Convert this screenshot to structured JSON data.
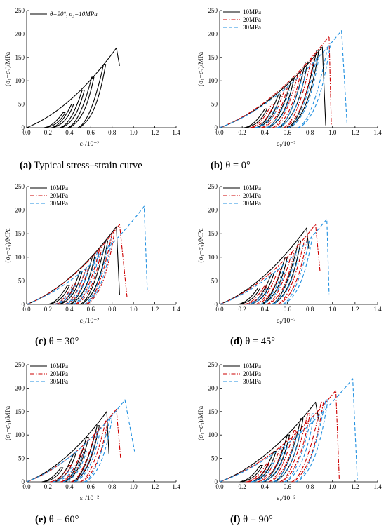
{
  "figure": {
    "panels": [
      {
        "id": "a",
        "caption_letter": "(a)",
        "caption_text": " Typical stress–strain curve",
        "legend_text": "θ=90°, σ₃=10MPa"
      },
      {
        "id": "b",
        "caption_letter": "(b)",
        "caption_text": " θ = 0°"
      },
      {
        "id": "c",
        "caption_letter": "(c)",
        "caption_text": " θ = 30°"
      },
      {
        "id": "d",
        "caption_letter": "(d)",
        "caption_text": " θ = 45°"
      },
      {
        "id": "e",
        "caption_letter": "(e)",
        "caption_text": " θ = 60°"
      },
      {
        "id": "f",
        "caption_letter": "(f)",
        "caption_text": " θ = 90°"
      }
    ]
  },
  "colors": {
    "10MPa": "#000000",
    "20MPa": "#cc0000",
    "30MPa": "#1f8fe0"
  },
  "chart_data": [
    {
      "panel": "a",
      "type": "line",
      "xlabel": "ε₁/10⁻²",
      "ylabel": "(σ₁−σ₃)/MPa",
      "xlim": [
        0,
        1.4
      ],
      "ylim": [
        0,
        250
      ],
      "xticks": [
        "0.0",
        "0.2",
        "0.4",
        "0.6",
        "0.8",
        "1.0",
        "1.2",
        "1.4"
      ],
      "yticks": [
        "0",
        "50",
        "100",
        "150",
        "200",
        "250"
      ],
      "legend_position": "top-left",
      "grid": false,
      "series": [
        {
          "name": "θ=90°, σ₃=10MPa",
          "style": "solid",
          "color": "#000000",
          "peak_stress": 170,
          "peak_strain": 0.84,
          "end_strain": 0.87,
          "end_stress": 132,
          "loops": [
            [
              0.34,
              32
            ],
            [
              0.42,
              50
            ],
            [
              0.52,
              80
            ],
            [
              0.61,
              108
            ],
            [
              0.72,
              135
            ]
          ]
        }
      ]
    },
    {
      "panel": "b",
      "type": "line",
      "xlabel": "ε₁/10⁻²",
      "ylabel": "(σ₁−σ₃)/MPa",
      "xlim": [
        0,
        1.4
      ],
      "ylim": [
        0,
        250
      ],
      "xticks": [
        "0.0",
        "0.2",
        "0.4",
        "0.6",
        "0.8",
        "1.0",
        "1.2",
        "1.4"
      ],
      "yticks": [
        "0",
        "50",
        "100",
        "150",
        "200",
        "250"
      ],
      "legend_position": "top-left",
      "grid": false,
      "series": [
        {
          "name": "10MPa",
          "style": "solid",
          "color": "#000000",
          "peak_stress": 172,
          "peak_strain": 0.91,
          "end_strain": 0.94,
          "end_stress": 5,
          "loops": [
            [
              0.4,
              40
            ],
            [
              0.52,
              70
            ],
            [
              0.64,
              105
            ],
            [
              0.76,
              140
            ],
            [
              0.86,
              165
            ]
          ]
        },
        {
          "name": "20MPa",
          "style": "dashdot",
          "color": "#cc0000",
          "peak_stress": 195,
          "peak_strain": 0.97,
          "end_strain": 0.99,
          "end_stress": 5,
          "loops": [
            [
              0.46,
              50
            ],
            [
              0.58,
              85
            ],
            [
              0.7,
              120
            ],
            [
              0.82,
              155
            ]
          ]
        },
        {
          "name": "30MPa",
          "style": "dashed",
          "color": "#1f8fe0",
          "peak_stress": 207,
          "peak_strain": 1.08,
          "end_strain": 1.13,
          "end_stress": 5,
          "loops": [
            [
              0.5,
              45
            ],
            [
              0.62,
              80
            ],
            [
              0.74,
              115
            ],
            [
              0.86,
              150
            ],
            [
              0.96,
              175
            ]
          ]
        }
      ]
    },
    {
      "panel": "c",
      "type": "line",
      "xlabel": "ε₁/10⁻²",
      "ylabel": "(σ₁−σ₃)/MPa",
      "xlim": [
        0,
        1.4
      ],
      "ylim": [
        0,
        250
      ],
      "xticks": [
        "0.0",
        "0.2",
        "0.4",
        "0.6",
        "0.8",
        "1.0",
        "1.2",
        "1.4"
      ],
      "yticks": [
        "0",
        "50",
        "100",
        "150",
        "200",
        "250"
      ],
      "legend_position": "top-left",
      "grid": false,
      "series": [
        {
          "name": "10MPa",
          "style": "solid",
          "color": "#000000",
          "peak_stress": 165,
          "peak_strain": 0.84,
          "end_strain": 0.87,
          "end_stress": 20,
          "loops": [
            [
              0.38,
              40
            ],
            [
              0.5,
              70
            ],
            [
              0.62,
              105
            ],
            [
              0.74,
              135
            ]
          ]
        },
        {
          "name": "20MPa",
          "style": "dashdot",
          "color": "#cc0000",
          "peak_stress": 170,
          "peak_strain": 0.87,
          "end_strain": 0.94,
          "end_stress": 15,
          "loops": [
            [
              0.44,
              45
            ],
            [
              0.56,
              80
            ],
            [
              0.68,
              115
            ],
            [
              0.8,
              150
            ]
          ]
        },
        {
          "name": "30MPa",
          "style": "dashed",
          "color": "#1f8fe0",
          "peak_stress": 208,
          "peak_strain": 1.1,
          "end_strain": 1.13,
          "end_stress": 30,
          "loops": [
            [
              0.44,
              40
            ],
            [
              0.56,
              75
            ],
            [
              0.66,
              110
            ],
            [
              0.78,
              140
            ]
          ]
        }
      ]
    },
    {
      "panel": "d",
      "type": "line",
      "xlabel": "ε₁/10⁻²",
      "ylabel": "(σ₁−σ₃)/MPa",
      "xlim": [
        0,
        1.4
      ],
      "ylim": [
        0,
        250
      ],
      "xticks": [
        "0.0",
        "0.2",
        "0.4",
        "0.6",
        "0.8",
        "1.0",
        "1.2",
        "1.4"
      ],
      "yticks": [
        "0",
        "50",
        "100",
        "150",
        "200",
        "250"
      ],
      "legend_position": "top-left",
      "grid": false,
      "series": [
        {
          "name": "10MPa",
          "style": "solid",
          "color": "#000000",
          "peak_stress": 162,
          "peak_strain": 0.77,
          "end_strain": 0.79,
          "end_stress": 118,
          "loops": [
            [
              0.34,
              35
            ],
            [
              0.46,
              65
            ],
            [
              0.58,
              100
            ],
            [
              0.7,
              135
            ]
          ]
        },
        {
          "name": "20MPa",
          "style": "dashdot",
          "color": "#cc0000",
          "peak_stress": 170,
          "peak_strain": 0.85,
          "end_strain": 0.89,
          "end_stress": 70,
          "loops": [
            [
              0.4,
              40
            ],
            [
              0.52,
              75
            ],
            [
              0.64,
              110
            ],
            [
              0.76,
              145
            ]
          ]
        },
        {
          "name": "30MPa",
          "style": "dashed",
          "color": "#1f8fe0",
          "peak_stress": 181,
          "peak_strain": 0.95,
          "end_strain": 0.97,
          "end_stress": 22,
          "loops": [
            [
              0.42,
              35
            ],
            [
              0.56,
              70
            ],
            [
              0.68,
              105
            ],
            [
              0.8,
              140
            ]
          ]
        }
      ]
    },
    {
      "panel": "e",
      "type": "line",
      "xlabel": "ε₁/10⁻²",
      "ylabel": "(σ₁−σ₃)/MPa",
      "xlim": [
        0,
        1.4
      ],
      "ylim": [
        0,
        250
      ],
      "xticks": [
        "0.0",
        "0.2",
        "0.4",
        "0.6",
        "0.8",
        "1.0",
        "1.2",
        "1.4"
      ],
      "yticks": [
        "0",
        "50",
        "100",
        "150",
        "200",
        "250"
      ],
      "legend_position": "top-left",
      "grid": false,
      "series": [
        {
          "name": "10MPa",
          "style": "solid",
          "color": "#000000",
          "peak_stress": 150,
          "peak_strain": 0.75,
          "end_strain": 0.77,
          "end_stress": 60,
          "loops": [
            [
              0.32,
              30
            ],
            [
              0.44,
              60
            ],
            [
              0.56,
              95
            ],
            [
              0.66,
              120
            ]
          ]
        },
        {
          "name": "20MPa",
          "style": "dashdot",
          "color": "#cc0000",
          "peak_stress": 155,
          "peak_strain": 0.84,
          "end_strain": 0.88,
          "end_stress": 50,
          "loops": [
            [
              0.4,
              35
            ],
            [
              0.52,
              70
            ],
            [
              0.64,
              105
            ],
            [
              0.74,
              130
            ]
          ]
        },
        {
          "name": "30MPa",
          "style": "dashed",
          "color": "#1f8fe0",
          "peak_stress": 175,
          "peak_strain": 0.92,
          "end_strain": 1.01,
          "end_stress": 65,
          "loops": [
            [
              0.42,
              30
            ],
            [
              0.54,
              65
            ],
            [
              0.66,
              100
            ],
            [
              0.78,
              135
            ]
          ]
        }
      ]
    },
    {
      "panel": "f",
      "type": "line",
      "xlabel": "ε₁/10⁻²",
      "ylabel": "(σ₁−σ₃)/MPa",
      "xlim": [
        0,
        1.4
      ],
      "ylim": [
        0,
        250
      ],
      "xticks": [
        "0.0",
        "0.2",
        "0.4",
        "0.6",
        "0.8",
        "1.0",
        "1.2",
        "1.4"
      ],
      "yticks": [
        "0",
        "50",
        "100",
        "150",
        "200",
        "250"
      ],
      "legend_position": "top-left",
      "grid": false,
      "series": [
        {
          "name": "10MPa",
          "style": "solid",
          "color": "#000000",
          "peak_stress": 170,
          "peak_strain": 0.85,
          "end_strain": 0.88,
          "end_stress": 130,
          "loops": [
            [
              0.36,
              35
            ],
            [
              0.48,
              65
            ],
            [
              0.6,
              100
            ],
            [
              0.72,
              135
            ]
          ]
        },
        {
          "name": "20MPa",
          "style": "dashdot",
          "color": "#cc0000",
          "peak_stress": 195,
          "peak_strain": 1.03,
          "end_strain": 1.06,
          "end_stress": 5,
          "loops": [
            [
              0.42,
              40
            ],
            [
              0.54,
              75
            ],
            [
              0.66,
              110
            ],
            [
              0.78,
              145
            ],
            [
              0.9,
              170
            ]
          ]
        },
        {
          "name": "30MPa",
          "style": "dashed",
          "color": "#1f8fe0",
          "peak_stress": 220,
          "peak_strain": 1.18,
          "end_strain": 1.22,
          "end_stress": 5,
          "loops": [
            [
              0.46,
              40
            ],
            [
              0.58,
              75
            ],
            [
              0.7,
              110
            ],
            [
              0.82,
              145
            ],
            [
              0.94,
              175
            ]
          ]
        }
      ]
    }
  ]
}
